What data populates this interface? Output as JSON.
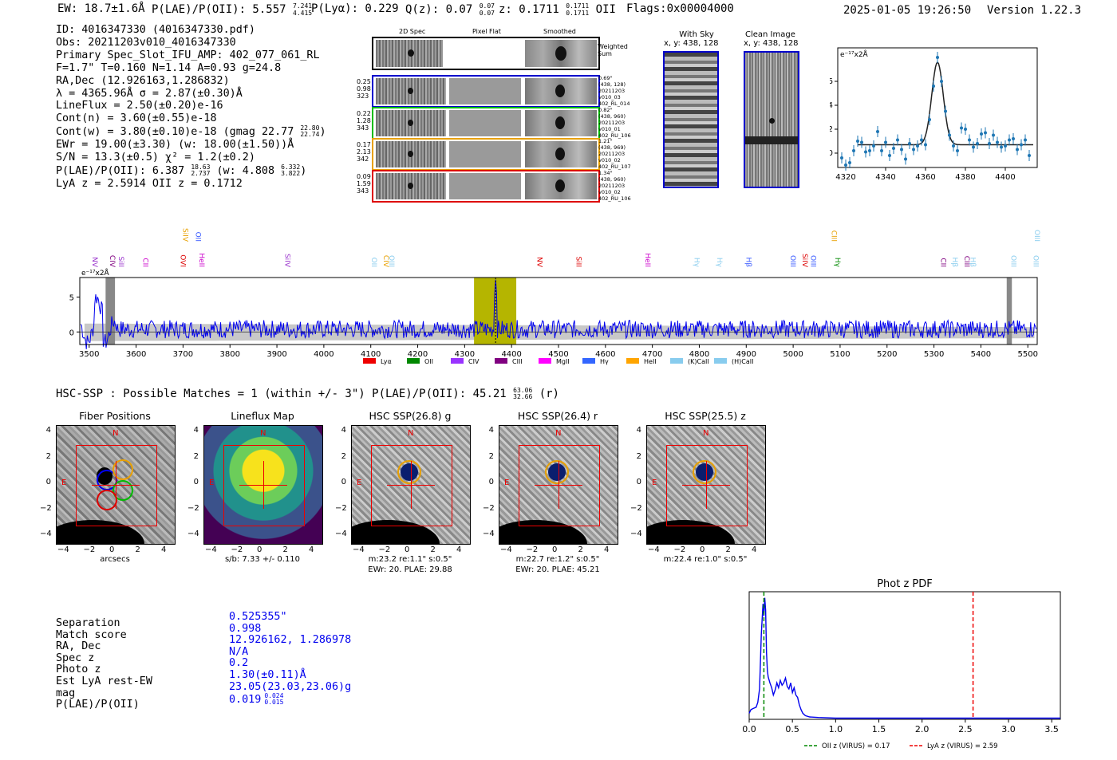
{
  "header": {
    "ew": "EW: 18.7±1.6Å",
    "plae_label": "P(LAE)/P(OII): 5.557",
    "plae_hi": "7.241",
    "plae_lo": "4.415",
    "plya": "P(Lyα): 0.229",
    "qz_label": "Q(z): 0.07",
    "qz_hi": "0.07",
    "qz_lo": "0.07",
    "z_label": "z: 0.1711",
    "z_hi": "0.1711",
    "z_lo": "0.1711",
    "z_line": "OII",
    "flags": "Flags:0x00004000",
    "datetime": "2025-01-05 19:26:50",
    "version": "Version 1.22.3"
  },
  "info": {
    "id": "ID: 4016347330 (4016347330.pdf)",
    "obs": "Obs: 20211203v010_4016347330",
    "primary": "Primary Spec_Slot_IFU_AMP: 402_077_061_RL",
    "params": "F=1.7\"  T=0.160  N=1.14  A=0.93  g=24.8",
    "radec": "RA,Dec (12.926163,1.286832)",
    "lambda": "λ = 4365.96Å  σ = 2.87(±0.30)Å",
    "lineflux": "LineFlux = 2.50(±0.20)e-16",
    "contn": "Cont(n) = 3.60(±0.55)e-18",
    "contw": "Cont(w) = 3.80(±0.10)e-18 (gmag 22.77",
    "contw_hi": "22.80",
    "contw_lo": "22.74",
    "ewr": "EWr = 19.00(±3.30) (w: 18.00(±1.50))Å",
    "sn": "S/N = 13.3(±0.5)  χ² = 1.2(±0.2)",
    "plae": "P(LAE)/P(OII): 6.387",
    "plae_hi": "18.63",
    "plae_lo": "2.737",
    "plae_w": "(w: 4.808",
    "plae_w_hi": "6.332",
    "plae_w_lo": "3.822",
    "lyaz": "LyA z = 2.5914  OII z = 0.1712"
  },
  "cutouts": {
    "col_headers": [
      "2D Spec",
      "Pixel Flat",
      "Smoothed"
    ],
    "weighted_sum": "Weighted\nSum",
    "rows": [
      {
        "left": [
          "0.25",
          "0.98",
          "323"
        ],
        "right": [
          "0.69\"",
          "(438, 128)",
          "20211203",
          "v010_03",
          "402_RL_014"
        ],
        "color": "#0000cc"
      },
      {
        "left": [
          "0.22",
          "1.28",
          "343"
        ],
        "right": [
          "0.82\"",
          "(438, 960)",
          "20211203",
          "v010_01",
          "402_RU_106"
        ],
        "color": "#00bb00"
      },
      {
        "left": [
          "0.17",
          "2.13",
          "342"
        ],
        "right": [
          "1.21\"",
          "(438, 969)",
          "20211203",
          "v010_02",
          "402_RU_107"
        ],
        "color": "#e8a000"
      },
      {
        "left": [
          "0.09",
          "1.59",
          "343"
        ],
        "right": [
          "1.34\"",
          "(438, 960)",
          "20211203",
          "v010_02",
          "402_RU_106"
        ],
        "color": "#dd0000"
      }
    ],
    "with_sky": "With Sky",
    "with_sky_xy": "x, y: 438, 128",
    "clean": "Clean Image",
    "clean_xy": "x, y: 438, 128"
  },
  "line_fit": {
    "ylabel": "e⁻¹⁷x2Å",
    "xticks": [
      "4320",
      "4340",
      "4360",
      "4380",
      "4400"
    ],
    "yticks": [
      "0",
      "2",
      "4",
      "6"
    ],
    "xrange": [
      4316,
      4416
    ],
    "yrange": [
      -1.2,
      8.8
    ],
    "points_x": [
      4318,
      4320,
      4322,
      4324,
      4326,
      4328,
      4330,
      4332,
      4334,
      4336,
      4338,
      4340,
      4342,
      4344,
      4346,
      4348,
      4350,
      4352,
      4354,
      4356,
      4358,
      4360,
      4362,
      4364,
      4366,
      4368,
      4370,
      4372,
      4374,
      4376,
      4378,
      4380,
      4382,
      4384,
      4386,
      4388,
      4390,
      4392,
      4394,
      4396,
      4398,
      4400,
      4402,
      4404,
      4406,
      4408,
      4410,
      4412
    ],
    "points_y": [
      -0.4,
      -1.0,
      -0.8,
      0.2,
      1.0,
      0.9,
      0.1,
      0.2,
      0.6,
      1.8,
      0.2,
      0.9,
      -0.2,
      0.4,
      1.1,
      0.3,
      -0.5,
      0.8,
      0.3,
      0.6,
      1.1,
      0.7,
      2.8,
      5.6,
      8.0,
      6.0,
      3.5,
      1.5,
      0.6,
      0.2,
      2.1,
      2.0,
      1.1,
      0.5,
      0.8,
      1.6,
      1.7,
      0.8,
      1.5,
      0.9,
      0.5,
      0.6,
      1.1,
      1.2,
      0.3,
      0.7,
      1.1,
      -0.2
    ],
    "fit_center": 4366,
    "fit_sigma": 2.87,
    "fit_amp": 6.9,
    "fit_base": 0.7
  },
  "spectrum": {
    "ylabel": "e⁻¹⁷x2Å",
    "xticks": [
      "3500",
      "3600",
      "3700",
      "3800",
      "3900",
      "4000",
      "4100",
      "4200",
      "4300",
      "4400",
      "4500",
      "4600",
      "4700",
      "4800",
      "4900",
      "5000",
      "5100",
      "5200",
      "5300",
      "5400",
      "5500"
    ],
    "yticks": [
      "0",
      "5"
    ],
    "xrange": [
      3480,
      5520
    ],
    "yrange": [
      -1.8,
      7.8
    ],
    "highlight": [
      4320,
      4410
    ],
    "line_labels": [
      {
        "t": "NV",
        "w": 3507,
        "c": "#9933cc",
        "row": 1
      },
      {
        "t": "CIV",
        "w": 3545,
        "c": "#800080",
        "row": 1
      },
      {
        "t": "SiII",
        "w": 3563,
        "c": "#9933cc",
        "row": 1
      },
      {
        "t": "CII",
        "w": 3615,
        "c": "#cc00cc",
        "row": 1
      },
      {
        "t": "SiIV",
        "w": 3700,
        "c": "#e8a000",
        "row": 0
      },
      {
        "t": "OVI",
        "w": 3695,
        "c": "#dd0000",
        "row": 1
      },
      {
        "t": "OII",
        "w": 3727,
        "c": "#3355ff",
        "row": 0
      },
      {
        "t": "HeII",
        "w": 3735,
        "c": "#cc00cc",
        "row": 1
      },
      {
        "t": "SiIV",
        "w": 3918,
        "c": "#9933cc",
        "row": 1
      },
      {
        "t": "OII",
        "w": 4102,
        "c": "#88ccee",
        "row": 1
      },
      {
        "t": "CIV",
        "w": 4128,
        "c": "#e8a000",
        "row": 1
      },
      {
        "t": "OIII",
        "w": 4140,
        "c": "#88ccee",
        "row": 1
      },
      {
        "t": "NV",
        "w": 4455,
        "c": "#dd0000",
        "row": 1
      },
      {
        "t": "SiII",
        "w": 4538,
        "c": "#dd0000",
        "row": 1
      },
      {
        "t": "HeII",
        "w": 4685,
        "c": "#cc00cc",
        "row": 1
      },
      {
        "t": "Hγ",
        "w": 4790,
        "c": "#88ccee",
        "row": 1
      },
      {
        "t": "Hγ",
        "w": 4838,
        "c": "#88ccee",
        "row": 1
      },
      {
        "t": "Hβ",
        "w": 4900,
        "c": "#3355ff",
        "row": 1
      },
      {
        "t": "OIII",
        "w": 4995,
        "c": "#3355ff",
        "row": 1
      },
      {
        "t": "SiIV",
        "w": 5020,
        "c": "#dd0000",
        "row": 1
      },
      {
        "t": "OIII",
        "w": 5038,
        "c": "#3355ff",
        "row": 1
      },
      {
        "t": "CIII",
        "w": 5082,
        "c": "#e8a000",
        "row": 0
      },
      {
        "t": "Hγ",
        "w": 5090,
        "c": "#008800",
        "row": 1
      },
      {
        "t": "CII",
        "w": 5315,
        "c": "#800080",
        "row": 1
      },
      {
        "t": "Hβ",
        "w": 5340,
        "c": "#88ccee",
        "row": 1
      },
      {
        "t": "CIII",
        "w": 5365,
        "c": "#800080",
        "row": 1
      },
      {
        "t": "Hβ",
        "w": 5378,
        "c": "#88ccee",
        "row": 1
      },
      {
        "t": "OIII",
        "w": 5465,
        "c": "#88ccee",
        "row": 1
      },
      {
        "t": "OIII",
        "w": 5515,
        "c": "#88ccee",
        "row": 0
      },
      {
        "t": "OIII",
        "w": 5512,
        "c": "#88ccee",
        "row": 1
      }
    ],
    "legend": [
      {
        "t": "Lyα",
        "c": "#ee0000"
      },
      {
        "t": "OII",
        "c": "#008800"
      },
      {
        "t": "CIV",
        "c": "#9933ff"
      },
      {
        "t": "CIII",
        "c": "#800080"
      },
      {
        "t": "MgII",
        "c": "#ff00ff"
      },
      {
        "t": "Hγ",
        "c": "#3366ff"
      },
      {
        "t": "HeII",
        "c": "#ffa500"
      },
      {
        "t": "(K)CaII",
        "c": "#88ccee"
      },
      {
        "t": "(H)CaII",
        "c": "#88ccee"
      }
    ]
  },
  "hsc_header": "HSC-SSP : Possible Matches = 1 (within +/- 3\")  P(LAE)/P(OII): 45.21",
  "hsc_hi": "63.06",
  "hsc_lo": "32.66",
  "hsc_band": "(r)",
  "panels": [
    {
      "title": "Fiber Positions",
      "xlabel": "arcsecs",
      "sub": "",
      "sub2": ""
    },
    {
      "title": "Lineflux Map",
      "xlabel": "s/b: 7.33 +/- 0.110",
      "sub": "",
      "sub2": ""
    },
    {
      "title": "HSC SSP(26.8) g",
      "xlabel": "m:23.2  re:1.1\"  s:0.5\"",
      "sub": "EWr: 20. PLAE: 29.88",
      "sub2": ""
    },
    {
      "title": "HSC SSP(26.4) r",
      "xlabel": "m:22.7  re:1.2\"  s:0.5\"",
      "sub": "EWr: 20. PLAE: 45.21",
      "sub2": ""
    },
    {
      "title": "HSC SSP(25.5) z",
      "xlabel": "m:22.4  re:1.0\"  s:0.5\"",
      "sub": "",
      "sub2": ""
    }
  ],
  "panel_ticks": [
    "4",
    "2",
    "0",
    "−2",
    "−4"
  ],
  "panel_xticks": [
    "−4",
    "−2",
    "0",
    "2",
    "4"
  ],
  "compass_n": "N",
  "compass_e": "E",
  "match_table": [
    {
      "k": "Separation",
      "v": "0.525355\""
    },
    {
      "k": "Match score",
      "v": "0.998"
    },
    {
      "k": "RA, Dec",
      "v": "12.926162, 1.286978"
    },
    {
      "k": "Spec z",
      "v": "N/A"
    },
    {
      "k": "Photo z",
      "v": "0.2"
    },
    {
      "k": "Est LyA rest-EW",
      "v": "1.30(±0.11)Å"
    },
    {
      "k": "mag",
      "v": "23.05(23.03,23.06)g"
    },
    {
      "k": "P(LAE)/P(OII)",
      "v": "0.019"
    }
  ],
  "match_plae_hi": "0.024",
  "match_plae_lo": "0.015",
  "chart_data": {
    "type": "line",
    "title": "Phot z PDF",
    "x": [
      0.0,
      0.02,
      0.05,
      0.08,
      0.1,
      0.12,
      0.14,
      0.16,
      0.17,
      0.18,
      0.19,
      0.2,
      0.21,
      0.22,
      0.24,
      0.26,
      0.28,
      0.3,
      0.32,
      0.34,
      0.36,
      0.38,
      0.4,
      0.42,
      0.44,
      0.46,
      0.48,
      0.5,
      0.52,
      0.54,
      0.56,
      0.58,
      0.6,
      0.62,
      0.65,
      0.7,
      0.8,
      1.0,
      1.5,
      2.0,
      2.5,
      3.0,
      3.6
    ],
    "values": [
      0.05,
      0.08,
      0.09,
      0.1,
      0.14,
      0.25,
      0.7,
      0.95,
      0.85,
      1.0,
      0.9,
      0.55,
      0.4,
      0.35,
      0.3,
      0.26,
      0.2,
      0.24,
      0.3,
      0.26,
      0.32,
      0.28,
      0.3,
      0.34,
      0.27,
      0.25,
      0.3,
      0.22,
      0.26,
      0.2,
      0.18,
      0.12,
      0.08,
      0.05,
      0.03,
      0.02,
      0.015,
      0.01,
      0.01,
      0.01,
      0.01,
      0.01,
      0.01
    ],
    "xlim": [
      0,
      3.6
    ],
    "ylim": [
      0,
      1.05
    ],
    "xticks": [
      "0.0",
      "0.5",
      "1.0",
      "1.5",
      "2.0",
      "2.5",
      "3.0",
      "3.5"
    ],
    "vlines": [
      {
        "x": 0.17,
        "color": "#008800",
        "label": "OII z (VIRUS) = 0.17"
      },
      {
        "x": 2.59,
        "color": "#ee0000",
        "label": "LyA z (VIRUS) = 2.59"
      }
    ]
  }
}
